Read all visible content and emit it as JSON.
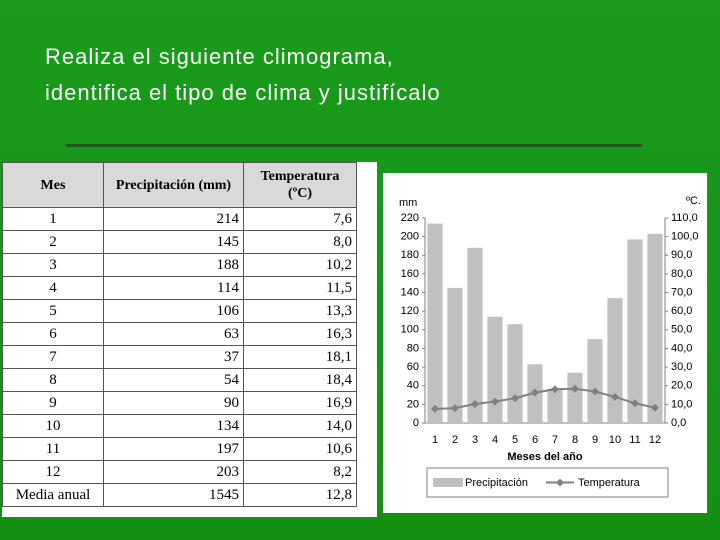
{
  "title_lines": [
    "Realiza el siguiente climograma,",
    "identifica el tipo de clima y justifícalo"
  ],
  "table": {
    "header": [
      "Mes",
      "Precipitación (mm)",
      "Temperatura (ºC)"
    ],
    "rows": [
      [
        "1",
        "214",
        "7,6"
      ],
      [
        "2",
        "145",
        "8,0"
      ],
      [
        "3",
        "188",
        "10,2"
      ],
      [
        "4",
        "114",
        "11,5"
      ],
      [
        "5",
        "106",
        "13,3"
      ],
      [
        "6",
        "63",
        "16,3"
      ],
      [
        "7",
        "37",
        "18,1"
      ],
      [
        "8",
        "54",
        "18,4"
      ],
      [
        "9",
        "90",
        "16,9"
      ],
      [
        "10",
        "134",
        "14,0"
      ],
      [
        "11",
        "197",
        "10,6"
      ],
      [
        "12",
        "203",
        "8,2"
      ]
    ],
    "footer": [
      "Media anual",
      "1545",
      "12,8"
    ]
  },
  "chart_data": {
    "type": "combo",
    "ylabel": "mm",
    "y2label": "ºC.",
    "xlabel": "Meses del año",
    "categories": [
      "1",
      "2",
      "3",
      "4",
      "5",
      "6",
      "7",
      "8",
      "9",
      "10",
      "11",
      "12"
    ],
    "series": [
      {
        "name": "Precipitación",
        "color": "#c0c0c0",
        "style": "bar",
        "values": [
          214,
          145,
          188,
          114,
          106,
          63,
          37,
          54,
          90,
          134,
          197,
          203
        ]
      },
      {
        "name": "Temperatura",
        "color": "#808080",
        "style": "line",
        "axis": "y2",
        "values": [
          7.6,
          8.0,
          10.2,
          11.5,
          13.3,
          16.3,
          18.1,
          18.4,
          16.9,
          14.0,
          10.6,
          8.2
        ]
      }
    ],
    "ylim": [
      0,
      220
    ],
    "yticks": [
      0,
      20,
      40,
      60,
      80,
      100,
      120,
      140,
      160,
      180,
      200,
      220
    ],
    "y2lim": [
      0,
      110
    ],
    "y2ticks": [
      {
        "value": 0,
        "label": "0,0"
      },
      {
        "value": 10,
        "label": "10,0"
      },
      {
        "value": 20,
        "label": "20,0"
      },
      {
        "value": 30,
        "label": "30,0"
      },
      {
        "value": 40,
        "label": "40,0"
      },
      {
        "value": 50,
        "label": "50,0"
      },
      {
        "value": 60,
        "label": "60,0"
      },
      {
        "value": 70,
        "label": "70,0"
      },
      {
        "value": 80,
        "label": "80,0"
      },
      {
        "value": 90,
        "label": "90,0"
      },
      {
        "value": 100,
        "label": "100,0"
      },
      {
        "value": 110,
        "label": "110,0"
      }
    ],
    "grid": false,
    "legend": "bottom"
  }
}
